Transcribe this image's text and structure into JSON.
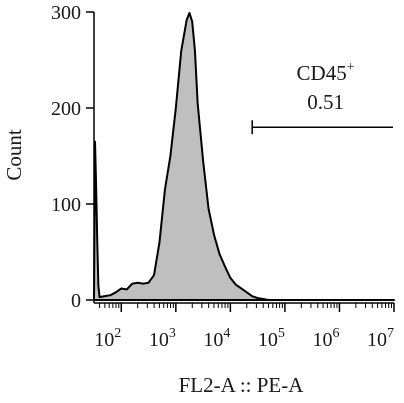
{
  "chart_data": {
    "type": "area",
    "xlabel": "FL2-A :: PE-A",
    "ylabel": "Count",
    "x_scale": "log",
    "xlim": [
      31.6,
      10000000
    ],
    "ylim": [
      0,
      300
    ],
    "y_ticks": [
      0,
      100,
      200,
      300
    ],
    "x_ticks": [
      {
        "base": "10",
        "exp": "2",
        "value": 100
      },
      {
        "base": "10",
        "exp": "3",
        "value": 1000
      },
      {
        "base": "10",
        "exp": "4",
        "value": 10000
      },
      {
        "base": "10",
        "exp": "5",
        "value": 100000
      },
      {
        "base": "10",
        "exp": "6",
        "value": 1000000
      },
      {
        "base": "10",
        "exp": "7",
        "value": 10000000
      }
    ],
    "series": [
      {
        "fill": "#bfbfbf",
        "stroke": "#000000",
        "points": [
          [
            31.6,
            0
          ],
          [
            33.0,
            165
          ],
          [
            34.5,
            120
          ],
          [
            36.3,
            60
          ],
          [
            38.0,
            15
          ],
          [
            40.0,
            3
          ],
          [
            50.1,
            4
          ],
          [
            63.1,
            5
          ],
          [
            79.4,
            8
          ],
          [
            100,
            12
          ],
          [
            125.9,
            11
          ],
          [
            158.5,
            17
          ],
          [
            199.5,
            18
          ],
          [
            251.2,
            17
          ],
          [
            316.2,
            18
          ],
          [
            398.1,
            26
          ],
          [
            501.2,
            60
          ],
          [
            631.0,
            115
          ],
          [
            794.3,
            150
          ],
          [
            1000,
            200
          ],
          [
            1259,
            260
          ],
          [
            1585,
            292
          ],
          [
            1778,
            299
          ],
          [
            1995,
            290
          ],
          [
            2239,
            260
          ],
          [
            2512,
            205
          ],
          [
            3162,
            145
          ],
          [
            3981,
            95
          ],
          [
            5012,
            68
          ],
          [
            6310,
            48
          ],
          [
            7943,
            35
          ],
          [
            10000,
            23
          ],
          [
            12589,
            16
          ],
          [
            15849,
            12
          ],
          [
            19953,
            8
          ],
          [
            25119,
            4
          ],
          [
            31623,
            2
          ],
          [
            39811,
            1
          ],
          [
            50119,
            0
          ],
          [
            10000000,
            0
          ]
        ]
      }
    ],
    "gates": [
      {
        "label": "CD45",
        "superscript": "+",
        "value": "0.51",
        "x_start": 25119,
        "x_end": 10000000,
        "y": 180
      }
    ]
  }
}
